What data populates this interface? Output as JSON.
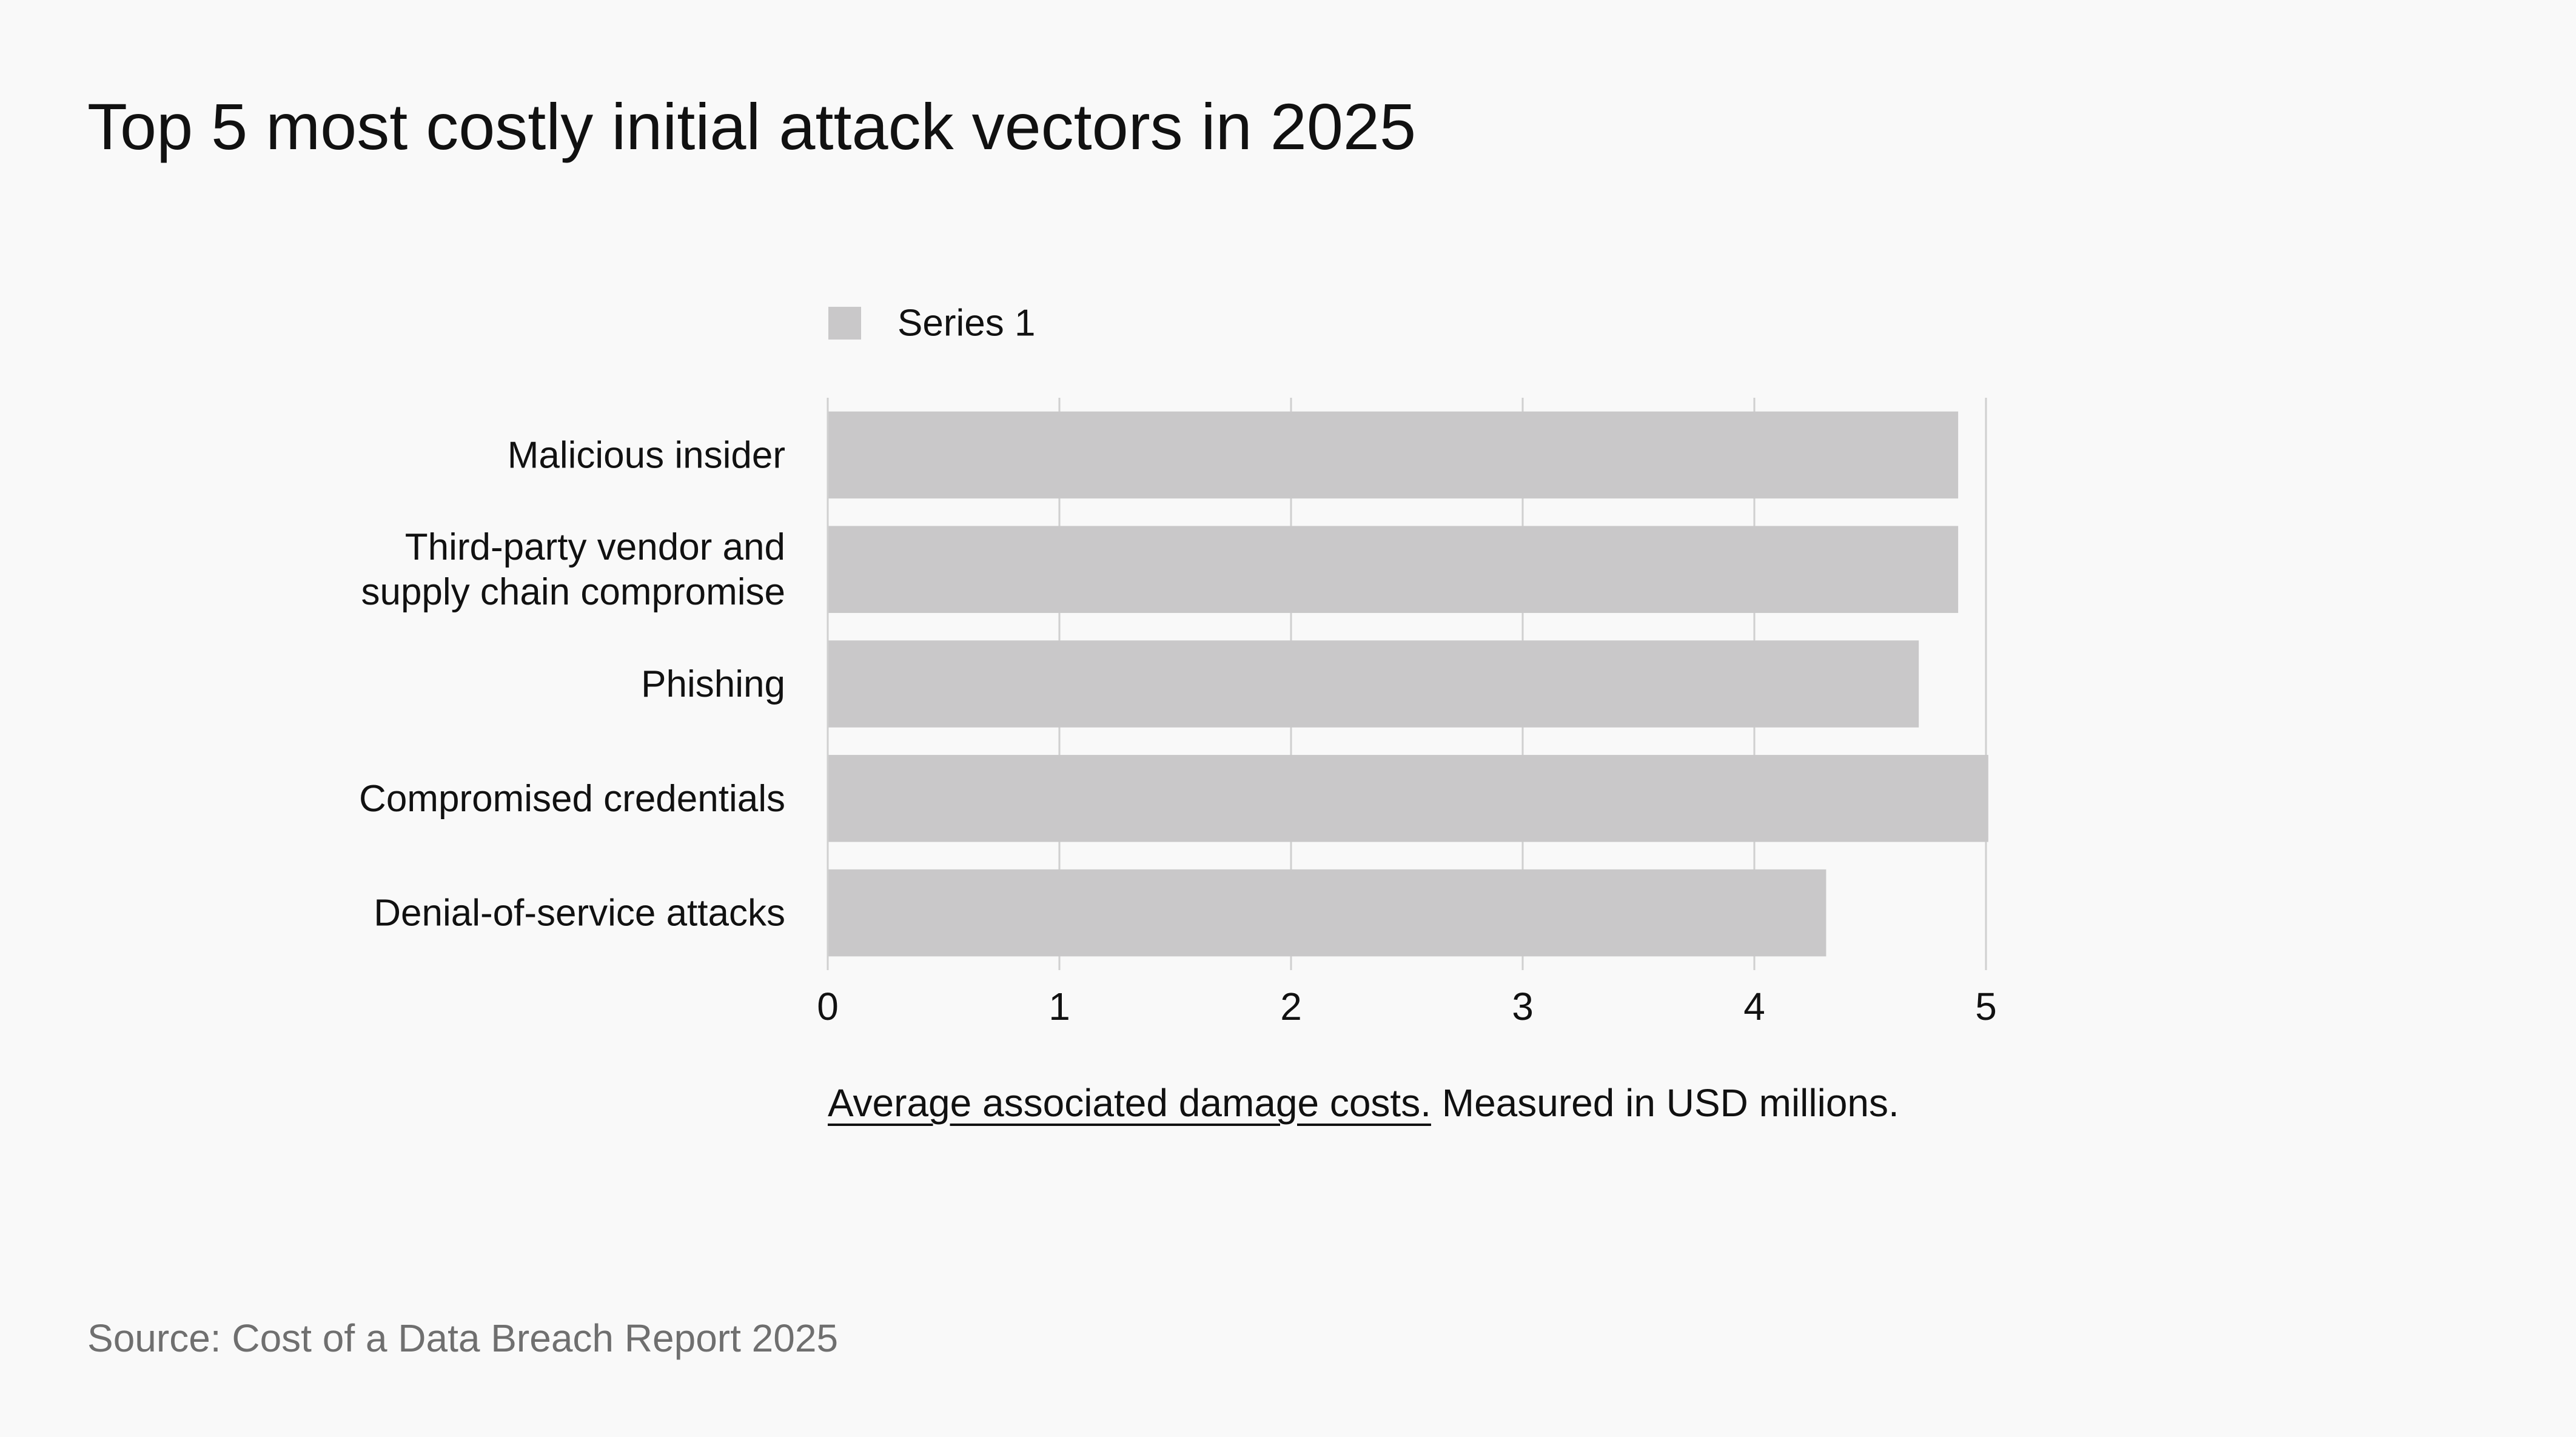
{
  "page": {
    "title": "Top 5 most costly initial attack vectors in 2025",
    "caption_link": "Average associated damage costs.",
    "caption_rest": " Measured in USD millions.",
    "source": "Source: Cost of a Data Breach Report 2025"
  },
  "colors": {
    "background": "#f9f9f9",
    "bar": "#c9c8c9",
    "grid": "#d0d0d0",
    "text": "#111111",
    "source_text": "#6f6f6f"
  },
  "chart_data": {
    "type": "bar",
    "orientation": "horizontal",
    "title": "Top 5 most costly initial attack vectors in 2025",
    "categories": [
      [
        "Malicious insider"
      ],
      [
        "Third-party vendor and",
        "supply chain compromise"
      ],
      [
        "Phishing"
      ],
      [
        "Compromised credentials"
      ],
      [
        "Denial-of-service attacks"
      ]
    ],
    "series": [
      {
        "name": "Series 1",
        "values": [
          4.88,
          4.88,
          4.71,
          5.01,
          4.31
        ]
      }
    ],
    "xlim": [
      0,
      5
    ],
    "xticks": [
      "0",
      "1",
      "2",
      "3",
      "4",
      "5"
    ],
    "xlabel": "Average associated damage costs. Measured in USD millions.",
    "ylabel": "",
    "grid": true,
    "legend_position": "top-left"
  }
}
